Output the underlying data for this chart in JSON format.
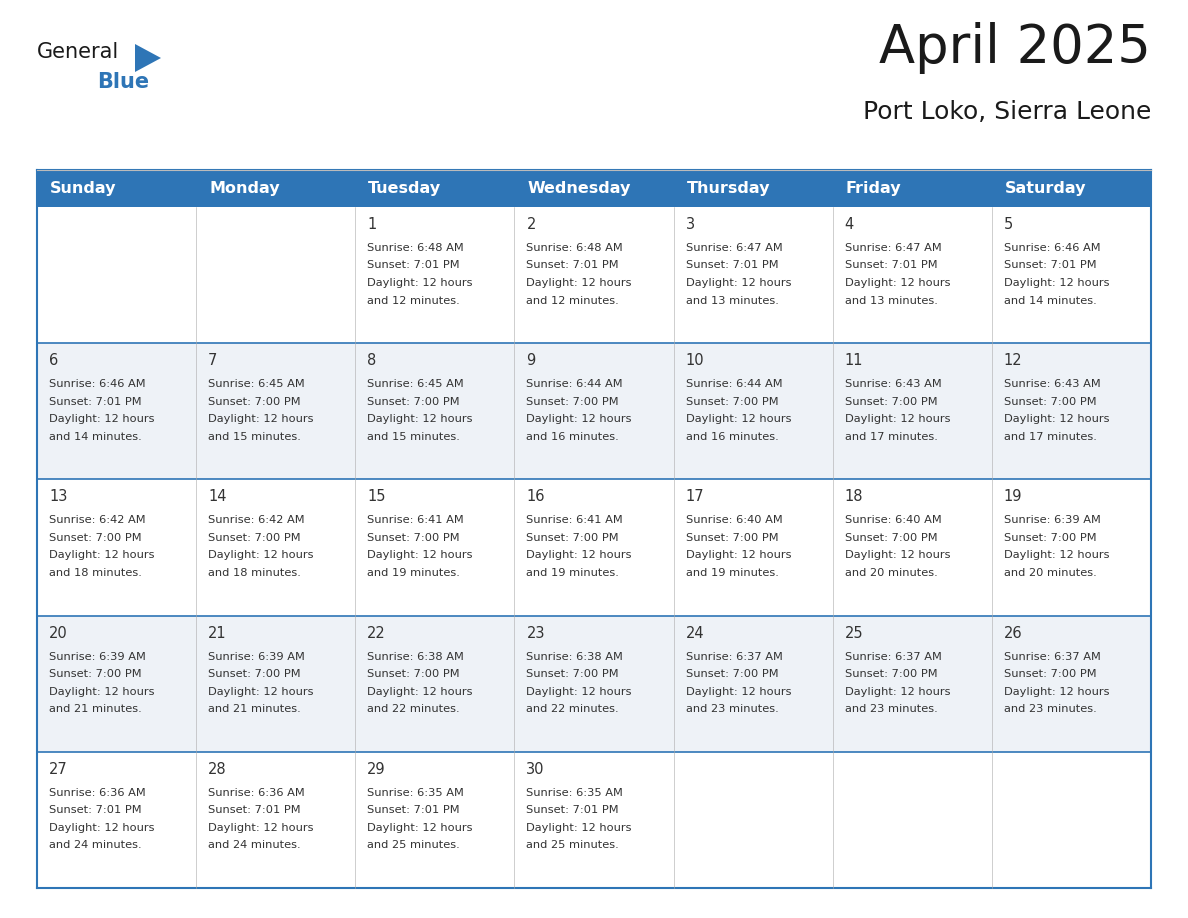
{
  "title": "April 2025",
  "subtitle": "Port Loko, Sierra Leone",
  "header_bg_color": "#2E75B6",
  "header_text_color": "#FFFFFF",
  "row_bg_even": "#FFFFFF",
  "row_bg_odd": "#EEF2F7",
  "grid_color": "#2E75B6",
  "separator_color": "#2E75B6",
  "day_headers": [
    "Sunday",
    "Monday",
    "Tuesday",
    "Wednesday",
    "Thursday",
    "Friday",
    "Saturday"
  ],
  "title_color": "#1a1a1a",
  "subtitle_color": "#1a1a1a",
  "text_color": "#333333",
  "day_num_color": "#333333",
  "logo_general_color": "#1a1a1a",
  "logo_blue_color": "#2E75B6",
  "logo_triangle_color": "#2E75B6",
  "calendar_data": [
    [
      {
        "day": "",
        "sunrise": "",
        "sunset": "",
        "daylight": ""
      },
      {
        "day": "",
        "sunrise": "",
        "sunset": "",
        "daylight": ""
      },
      {
        "day": "1",
        "sunrise": "6:48 AM",
        "sunset": "7:01 PM",
        "daylight": "12 hours and 12 minutes."
      },
      {
        "day": "2",
        "sunrise": "6:48 AM",
        "sunset": "7:01 PM",
        "daylight": "12 hours and 12 minutes."
      },
      {
        "day": "3",
        "sunrise": "6:47 AM",
        "sunset": "7:01 PM",
        "daylight": "12 hours and 13 minutes."
      },
      {
        "day": "4",
        "sunrise": "6:47 AM",
        "sunset": "7:01 PM",
        "daylight": "12 hours and 13 minutes."
      },
      {
        "day": "5",
        "sunrise": "6:46 AM",
        "sunset": "7:01 PM",
        "daylight": "12 hours and 14 minutes."
      }
    ],
    [
      {
        "day": "6",
        "sunrise": "6:46 AM",
        "sunset": "7:01 PM",
        "daylight": "12 hours and 14 minutes."
      },
      {
        "day": "7",
        "sunrise": "6:45 AM",
        "sunset": "7:00 PM",
        "daylight": "12 hours and 15 minutes."
      },
      {
        "day": "8",
        "sunrise": "6:45 AM",
        "sunset": "7:00 PM",
        "daylight": "12 hours and 15 minutes."
      },
      {
        "day": "9",
        "sunrise": "6:44 AM",
        "sunset": "7:00 PM",
        "daylight": "12 hours and 16 minutes."
      },
      {
        "day": "10",
        "sunrise": "6:44 AM",
        "sunset": "7:00 PM",
        "daylight": "12 hours and 16 minutes."
      },
      {
        "day": "11",
        "sunrise": "6:43 AM",
        "sunset": "7:00 PM",
        "daylight": "12 hours and 17 minutes."
      },
      {
        "day": "12",
        "sunrise": "6:43 AM",
        "sunset": "7:00 PM",
        "daylight": "12 hours and 17 minutes."
      }
    ],
    [
      {
        "day": "13",
        "sunrise": "6:42 AM",
        "sunset": "7:00 PM",
        "daylight": "12 hours and 18 minutes."
      },
      {
        "day": "14",
        "sunrise": "6:42 AM",
        "sunset": "7:00 PM",
        "daylight": "12 hours and 18 minutes."
      },
      {
        "day": "15",
        "sunrise": "6:41 AM",
        "sunset": "7:00 PM",
        "daylight": "12 hours and 19 minutes."
      },
      {
        "day": "16",
        "sunrise": "6:41 AM",
        "sunset": "7:00 PM",
        "daylight": "12 hours and 19 minutes."
      },
      {
        "day": "17",
        "sunrise": "6:40 AM",
        "sunset": "7:00 PM",
        "daylight": "12 hours and 19 minutes."
      },
      {
        "day": "18",
        "sunrise": "6:40 AM",
        "sunset": "7:00 PM",
        "daylight": "12 hours and 20 minutes."
      },
      {
        "day": "19",
        "sunrise": "6:39 AM",
        "sunset": "7:00 PM",
        "daylight": "12 hours and 20 minutes."
      }
    ],
    [
      {
        "day": "20",
        "sunrise": "6:39 AM",
        "sunset": "7:00 PM",
        "daylight": "12 hours and 21 minutes."
      },
      {
        "day": "21",
        "sunrise": "6:39 AM",
        "sunset": "7:00 PM",
        "daylight": "12 hours and 21 minutes."
      },
      {
        "day": "22",
        "sunrise": "6:38 AM",
        "sunset": "7:00 PM",
        "daylight": "12 hours and 22 minutes."
      },
      {
        "day": "23",
        "sunrise": "6:38 AM",
        "sunset": "7:00 PM",
        "daylight": "12 hours and 22 minutes."
      },
      {
        "day": "24",
        "sunrise": "6:37 AM",
        "sunset": "7:00 PM",
        "daylight": "12 hours and 23 minutes."
      },
      {
        "day": "25",
        "sunrise": "6:37 AM",
        "sunset": "7:00 PM",
        "daylight": "12 hours and 23 minutes."
      },
      {
        "day": "26",
        "sunrise": "6:37 AM",
        "sunset": "7:00 PM",
        "daylight": "12 hours and 23 minutes."
      }
    ],
    [
      {
        "day": "27",
        "sunrise": "6:36 AM",
        "sunset": "7:01 PM",
        "daylight": "12 hours and 24 minutes."
      },
      {
        "day": "28",
        "sunrise": "6:36 AM",
        "sunset": "7:01 PM",
        "daylight": "12 hours and 24 minutes."
      },
      {
        "day": "29",
        "sunrise": "6:35 AM",
        "sunset": "7:01 PM",
        "daylight": "12 hours and 25 minutes."
      },
      {
        "day": "30",
        "sunrise": "6:35 AM",
        "sunset": "7:01 PM",
        "daylight": "12 hours and 25 minutes."
      },
      {
        "day": "",
        "sunrise": "",
        "sunset": "",
        "daylight": ""
      },
      {
        "day": "",
        "sunrise": "",
        "sunset": "",
        "daylight": ""
      },
      {
        "day": "",
        "sunrise": "",
        "sunset": "",
        "daylight": ""
      }
    ]
  ]
}
